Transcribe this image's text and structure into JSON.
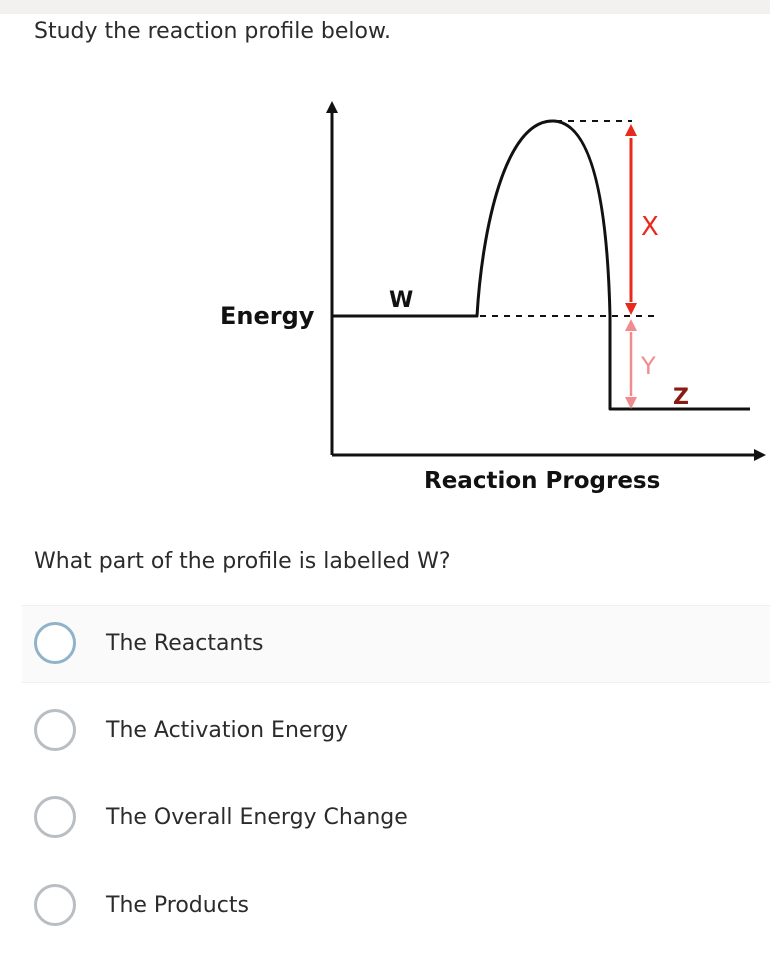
{
  "intro": "Study the reaction profile below.",
  "diagram": {
    "y_axis_label": "Energy",
    "x_axis_label": "Reaction Progress",
    "labels": {
      "w": "W",
      "x": "X",
      "y": "Y",
      "z": "Z"
    },
    "colors": {
      "curve": "#111111",
      "x_arrow": "#e8291c",
      "y_arrow": "#f28b8b",
      "x_label": "#e8291c",
      "y_label": "#f28b8b",
      "z_label": "#8a1a12"
    }
  },
  "question": "What part of the profile is labelled W?",
  "options": [
    {
      "label": "The Reactants"
    },
    {
      "label": "The Activation Energy"
    },
    {
      "label": "The Overall Energy Change"
    },
    {
      "label": "The Products"
    }
  ]
}
